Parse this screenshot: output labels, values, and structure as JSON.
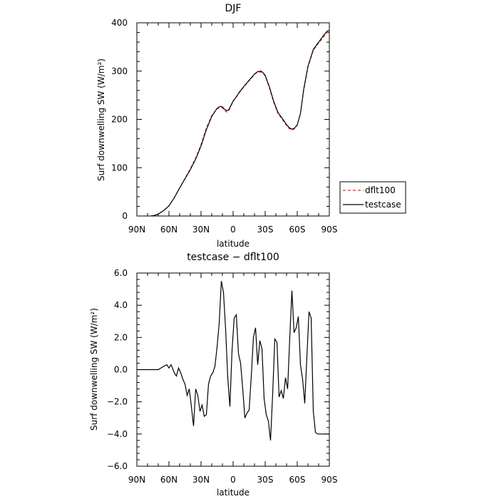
{
  "chart_data": [
    {
      "type": "line",
      "title": "DJF",
      "xlabel": "latitude",
      "ylabel": "Surf downwelling SW (W/m²)",
      "xlim": [
        -90,
        90
      ],
      "ylim": [
        0,
        400
      ],
      "x_ticks": [
        -90,
        -60,
        -30,
        0,
        30,
        60,
        90
      ],
      "x_tick_labels": [
        "90N",
        "60N",
        "30N",
        "0",
        "30S",
        "60S",
        "90S"
      ],
      "y_ticks": [
        0,
        100,
        200,
        300,
        400
      ],
      "y_tick_labels": [
        "0",
        "100",
        "200",
        "300",
        "400"
      ],
      "legend": "outside-right",
      "grid": false,
      "series": [
        {
          "name": "dflt100",
          "color": "#e8281e",
          "dash": "dashed",
          "x": [
            -77,
            -74,
            -70,
            -65,
            -60,
            -55,
            -50,
            -45,
            -40,
            -35,
            -30,
            -25,
            -20,
            -15,
            -12,
            -10,
            -8,
            -6,
            -4,
            -2,
            0,
            3,
            6,
            10,
            15,
            20,
            23,
            26,
            28,
            30,
            34,
            38,
            42,
            46,
            50,
            53,
            55,
            57,
            60,
            63,
            66,
            70,
            75,
            80,
            85,
            88,
            90
          ],
          "y": [
            0,
            1,
            4,
            11,
            21,
            38,
            58,
            78,
            98,
            120,
            148,
            182,
            208,
            222,
            225,
            224,
            218,
            215,
            218,
            228,
            237,
            246,
            256,
            267,
            280,
            293,
            298,
            298,
            295,
            290,
            265,
            235,
            212,
            200,
            187,
            180,
            178,
            180,
            188,
            213,
            260,
            308,
            343,
            358,
            372,
            380,
            382
          ]
        },
        {
          "name": "testcase",
          "color": "#000000",
          "dash": "solid",
          "x": [
            -77,
            -74,
            -70,
            -65,
            -60,
            -55,
            -50,
            -45,
            -40,
            -35,
            -30,
            -25,
            -20,
            -15,
            -12,
            -10,
            -8,
            -6,
            -4,
            -2,
            0,
            3,
            6,
            10,
            15,
            20,
            23,
            26,
            28,
            30,
            34,
            38,
            42,
            46,
            50,
            53,
            55,
            57,
            60,
            63,
            66,
            70,
            75,
            80,
            85,
            88,
            90
          ],
          "y": [
            0,
            1,
            4,
            11,
            21,
            38,
            58,
            77,
            96,
            118,
            145,
            179,
            206,
            223,
            227,
            226,
            221,
            218,
            220,
            229,
            238,
            247,
            257,
            268,
            281,
            294,
            299,
            300,
            297,
            291,
            267,
            237,
            214,
            202,
            189,
            182,
            180,
            181,
            189,
            212,
            262,
            310,
            345,
            360,
            375,
            383,
            384
          ]
        }
      ]
    },
    {
      "type": "line",
      "title": "testcase − dflt100",
      "xlabel": "latitude",
      "ylabel": "Surf downwelling SW (W/m²)",
      "xlim": [
        -90,
        90
      ],
      "ylim": [
        -6,
        6
      ],
      "x_ticks": [
        -90,
        -60,
        -30,
        0,
        30,
        60,
        90
      ],
      "x_tick_labels": [
        "90N",
        "60N",
        "30N",
        "0",
        "30S",
        "60S",
        "90S"
      ],
      "y_ticks": [
        -6,
        -4,
        -2,
        0,
        2,
        4,
        6
      ],
      "y_tick_labels": [
        "−6.0",
        "−4.0",
        "−2.0",
        "0.0",
        "2.0",
        "4.0",
        "6.0"
      ],
      "grid": false,
      "series": [
        {
          "color": "#000000",
          "dash": "solid",
          "x": [
            -90,
            -80,
            -70,
            -65,
            -62,
            -60,
            -58,
            -55,
            -53,
            -51,
            -49,
            -47,
            -45,
            -43,
            -41,
            -39,
            -37,
            -35,
            -33,
            -31,
            -29,
            -27,
            -25,
            -23,
            -21,
            -19,
            -17,
            -15,
            -13,
            -11,
            -9,
            -7,
            -5,
            -3,
            -1,
            1,
            3,
            5,
            7,
            9,
            11,
            13,
            15,
            17,
            19,
            21,
            23,
            25,
            27,
            29,
            31,
            33,
            35,
            37,
            39,
            41,
            43,
            45,
            47,
            49,
            51,
            53,
            55,
            57,
            59,
            61,
            63,
            65,
            67,
            69,
            71,
            73,
            75,
            77,
            79,
            81,
            83,
            85,
            87,
            89,
            90
          ],
          "y": [
            0.0,
            0.0,
            0.0,
            0.2,
            0.3,
            0.1,
            0.3,
            -0.2,
            -0.4,
            0.1,
            -0.2,
            -0.6,
            -0.9,
            -1.6,
            -1.2,
            -2.3,
            -3.5,
            -1.2,
            -1.6,
            -2.6,
            -2.2,
            -2.9,
            -2.8,
            -0.9,
            -0.4,
            -0.2,
            0.2,
            1.4,
            2.9,
            5.5,
            4.8,
            2.5,
            -0.5,
            -2.3,
            1.2,
            3.2,
            3.4,
            1.0,
            0.4,
            -1.2,
            -3.0,
            -2.7,
            -2.5,
            -0.4,
            2.0,
            2.6,
            0.3,
            1.8,
            1.3,
            -1.8,
            -2.8,
            -3.2,
            -4.4,
            -1.5,
            1.9,
            1.7,
            -1.7,
            -1.3,
            -1.8,
            -0.5,
            -1.2,
            2.0,
            4.9,
            2.3,
            2.6,
            3.3,
            0.3,
            -0.6,
            -2.1,
            0.8,
            3.6,
            3.2,
            -2.6,
            -3.9,
            -4.0,
            -4.0,
            -4.0,
            -4.0,
            -4.0,
            -4.0,
            -4.0
          ]
        }
      ]
    }
  ],
  "legend": {
    "items": [
      {
        "label": "dflt100",
        "color": "#e8281e",
        "dash": "dashed"
      },
      {
        "label": "testcase",
        "color": "#000000",
        "dash": "solid"
      }
    ]
  }
}
